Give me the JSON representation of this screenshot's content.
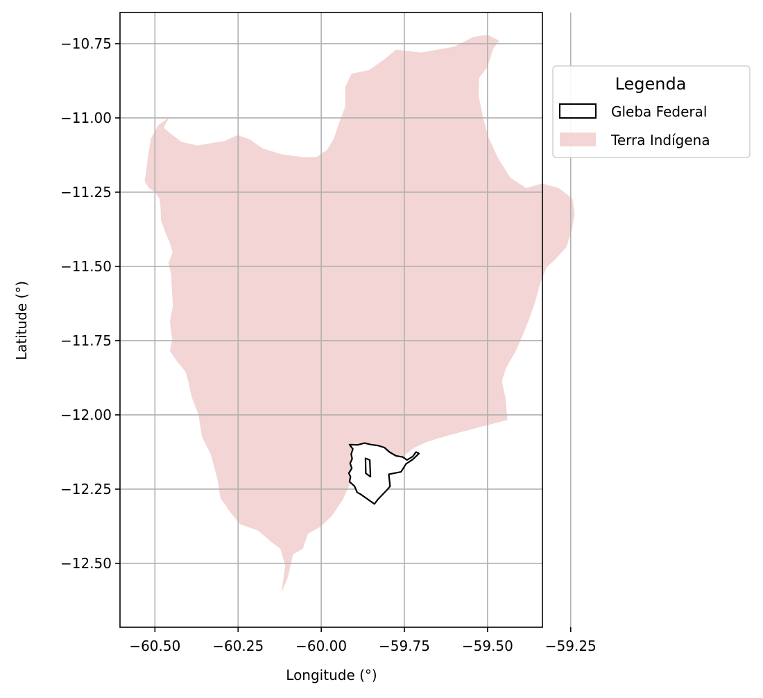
{
  "chart_data": {
    "type": "map",
    "xlabel": "Longitude (°)",
    "ylabel": "Latitude (°)",
    "xlim": [
      -60.605,
      -59.335
    ],
    "ylim": [
      -12.715,
      -10.645
    ],
    "x_ticks": [
      -60.5,
      -60.25,
      -60.0,
      -59.75,
      -59.5,
      -59.25
    ],
    "x_tick_labels": [
      "−60.50",
      "−60.25",
      "−60.00",
      "−59.75",
      "−59.50",
      "−59.25"
    ],
    "y_ticks": [
      -10.75,
      -11.0,
      -11.25,
      -11.5,
      -11.75,
      -12.0,
      -12.25,
      -12.5
    ],
    "y_tick_labels": [
      "−10.75",
      "−11.00",
      "−11.25",
      "−11.50",
      "−11.75",
      "−12.00",
      "−12.25",
      "−12.50"
    ],
    "grid": true,
    "legend": {
      "title": "Legenda",
      "placement": "outside-upper-right",
      "entries": [
        {
          "label": "Gleba Federal",
          "style": "outline",
          "edge_color": "#000000"
        },
        {
          "label": "Terra Indígena",
          "style": "fill",
          "fill_color": "#f2d5d4"
        }
      ]
    },
    "colors": {
      "terra_indigena": "#f2d5d4",
      "gleba_federal_edge": "#000000",
      "grid": "#b0b0b0"
    },
    "terra_indigena": [
      [
        -60.528,
        -11.192
      ],
      [
        -60.531,
        -11.212
      ],
      [
        -60.519,
        -11.235
      ],
      [
        -60.5,
        -11.25
      ],
      [
        -60.486,
        -11.273
      ],
      [
        -60.483,
        -11.305
      ],
      [
        -60.482,
        -11.343
      ],
      [
        -60.468,
        -11.388
      ],
      [
        -60.456,
        -11.418
      ],
      [
        -60.447,
        -11.452
      ],
      [
        -60.459,
        -11.488
      ],
      [
        -60.451,
        -11.528
      ],
      [
        -60.449,
        -11.58
      ],
      [
        -60.446,
        -11.632
      ],
      [
        -60.455,
        -11.687
      ],
      [
        -60.448,
        -11.746
      ],
      [
        -60.455,
        -11.785
      ],
      [
        -60.432,
        -11.822
      ],
      [
        -60.408,
        -11.855
      ],
      [
        -60.399,
        -11.891
      ],
      [
        -60.389,
        -11.942
      ],
      [
        -60.369,
        -11.999
      ],
      [
        -60.362,
        -12.05
      ],
      [
        -60.358,
        -12.075
      ],
      [
        -60.333,
        -12.13
      ],
      [
        -60.321,
        -12.178
      ],
      [
        -60.311,
        -12.223
      ],
      [
        -60.303,
        -12.28
      ],
      [
        -60.275,
        -12.325
      ],
      [
        -60.244,
        -12.368
      ],
      [
        -60.189,
        -12.39
      ],
      [
        -60.149,
        -12.429
      ],
      [
        -60.123,
        -12.45
      ],
      [
        -60.108,
        -12.508
      ],
      [
        -60.12,
        -12.6
      ],
      [
        -60.1,
        -12.545
      ],
      [
        -60.085,
        -12.47
      ],
      [
        -60.055,
        -12.45
      ],
      [
        -60.04,
        -12.4
      ],
      [
        -60.0,
        -12.375
      ],
      [
        -59.968,
        -12.34
      ],
      [
        -59.935,
        -12.285
      ],
      [
        -59.915,
        -12.235
      ],
      [
        -59.89,
        -12.2
      ],
      [
        -59.86,
        -12.188
      ],
      [
        -59.83,
        -12.175
      ],
      [
        -59.79,
        -12.17
      ],
      [
        -59.76,
        -12.145
      ],
      [
        -59.72,
        -12.11
      ],
      [
        -59.68,
        -12.09
      ],
      [
        -59.62,
        -12.07
      ],
      [
        -59.52,
        -12.04
      ],
      [
        -59.44,
        -12.017
      ],
      [
        -59.446,
        -11.944
      ],
      [
        -59.457,
        -11.886
      ],
      [
        -59.444,
        -11.841
      ],
      [
        -59.415,
        -11.785
      ],
      [
        -59.395,
        -11.733
      ],
      [
        -59.376,
        -11.681
      ],
      [
        -59.358,
        -11.623
      ],
      [
        -59.341,
        -11.555
      ],
      [
        -59.322,
        -11.502
      ],
      [
        -59.296,
        -11.476
      ],
      [
        -59.263,
        -11.435
      ],
      [
        -59.247,
        -11.38
      ],
      [
        -59.238,
        -11.323
      ],
      [
        -59.245,
        -11.272
      ],
      [
        -59.286,
        -11.236
      ],
      [
        -59.336,
        -11.221
      ],
      [
        -59.384,
        -11.236
      ],
      [
        -59.431,
        -11.202
      ],
      [
        -59.468,
        -11.136
      ],
      [
        -59.498,
        -11.064
      ],
      [
        -59.514,
        -10.995
      ],
      [
        -59.527,
        -10.925
      ],
      [
        -59.525,
        -10.865
      ],
      [
        -59.501,
        -10.829
      ],
      [
        -59.482,
        -10.765
      ],
      [
        -59.465,
        -10.74
      ],
      [
        -59.5,
        -10.72
      ],
      [
        -59.542,
        -10.727
      ],
      [
        -59.6,
        -10.76
      ],
      [
        -59.7,
        -10.78
      ],
      [
        -59.775,
        -10.77
      ],
      [
        -59.813,
        -10.805
      ],
      [
        -59.857,
        -10.839
      ],
      [
        -59.909,
        -10.851
      ],
      [
        -59.928,
        -10.897
      ],
      [
        -59.928,
        -10.963
      ],
      [
        -59.949,
        -11.025
      ],
      [
        -59.962,
        -11.07
      ],
      [
        -59.983,
        -11.108
      ],
      [
        -60.014,
        -11.132
      ],
      [
        -60.057,
        -11.132
      ],
      [
        -60.121,
        -11.122
      ],
      [
        -60.177,
        -11.102
      ],
      [
        -60.215,
        -11.072
      ],
      [
        -60.252,
        -11.058
      ],
      [
        -60.29,
        -11.078
      ],
      [
        -60.33,
        -11.085
      ],
      [
        -60.372,
        -11.093
      ],
      [
        -60.42,
        -11.081
      ],
      [
        -60.45,
        -11.055
      ],
      [
        -60.474,
        -11.033
      ],
      [
        -60.458,
        -11.0
      ],
      [
        -60.49,
        -11.024
      ],
      [
        -60.512,
        -11.069
      ],
      [
        -60.521,
        -11.133
      ]
    ],
    "gleba_federal": [
      [
        [
          -59.915,
          -12.1
        ],
        [
          -59.89,
          -12.101
        ],
        [
          -59.87,
          -12.095
        ],
        [
          -59.85,
          -12.1
        ],
        [
          -59.83,
          -12.103
        ],
        [
          -59.81,
          -12.11
        ],
        [
          -59.795,
          -12.125
        ],
        [
          -59.775,
          -12.138
        ],
        [
          -59.755,
          -12.142
        ],
        [
          -59.742,
          -12.152
        ],
        [
          -59.725,
          -12.14
        ],
        [
          -59.715,
          -12.125
        ],
        [
          -59.706,
          -12.13
        ],
        [
          -59.725,
          -12.15
        ],
        [
          -59.745,
          -12.165
        ],
        [
          -59.76,
          -12.192
        ],
        [
          -59.797,
          -12.2
        ],
        [
          -59.793,
          -12.24
        ],
        [
          -59.8,
          -12.25
        ],
        [
          -59.83,
          -12.285
        ],
        [
          -59.84,
          -12.3
        ],
        [
          -59.882,
          -12.267
        ],
        [
          -59.892,
          -12.261
        ],
        [
          -59.9,
          -12.24
        ],
        [
          -59.915,
          -12.225
        ],
        [
          -59.912,
          -12.208
        ],
        [
          -59.917,
          -12.196
        ],
        [
          -59.908,
          -12.18
        ],
        [
          -59.913,
          -12.163
        ],
        [
          -59.907,
          -12.148
        ],
        [
          -59.91,
          -12.132
        ],
        [
          -59.905,
          -12.115
        ]
      ],
      [
        [
          -59.867,
          -12.146
        ],
        [
          -59.854,
          -12.152
        ],
        [
          -59.852,
          -12.208
        ],
        [
          -59.866,
          -12.197
        ]
      ]
    ]
  }
}
